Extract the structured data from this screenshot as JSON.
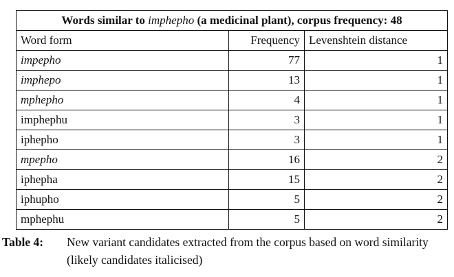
{
  "table": {
    "title_prefix": "Words similar to",
    "title_word": "imphepho",
    "title_suffix": "(a medicinal plant), corpus frequency: 48",
    "headers": [
      "Word form",
      "Frequency",
      "Levenshtein distance"
    ],
    "rows": [
      {
        "word": "impepho",
        "frequency": "77",
        "distance": "1",
        "italic": true
      },
      {
        "word": "imphepo",
        "frequency": "13",
        "distance": "1",
        "italic": true
      },
      {
        "word": "mphepho",
        "frequency": "4",
        "distance": "1",
        "italic": true
      },
      {
        "word": "imphephu",
        "frequency": "3",
        "distance": "1",
        "italic": false
      },
      {
        "word": "iphepho",
        "frequency": "3",
        "distance": "1",
        "italic": false
      },
      {
        "word": "mpepho",
        "frequency": "16",
        "distance": "2",
        "italic": true
      },
      {
        "word": "iphepha",
        "frequency": "15",
        "distance": "2",
        "italic": false
      },
      {
        "word": "iphupho",
        "frequency": "5",
        "distance": "2",
        "italic": false
      },
      {
        "word": "mphephu",
        "frequency": "5",
        "distance": "2",
        "italic": false
      }
    ]
  },
  "caption": {
    "label": "Table 4:",
    "text": "New variant candidates extracted from the corpus based on word similarity (likely candidates italicised)"
  }
}
